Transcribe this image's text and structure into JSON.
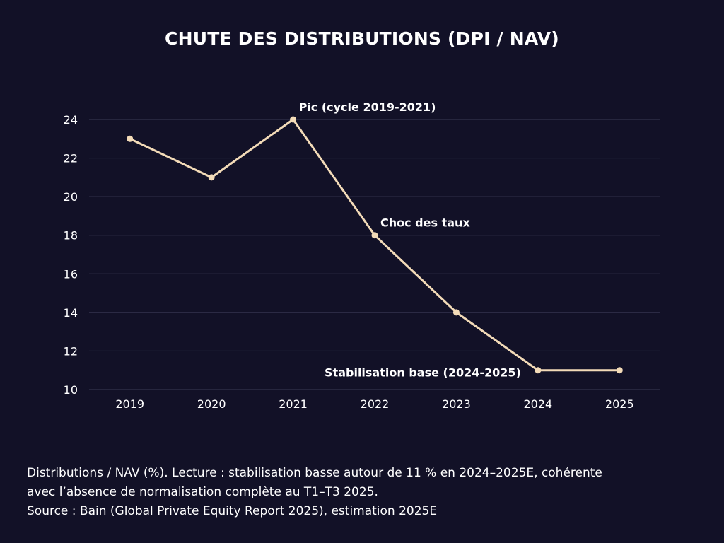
{
  "chart_data": {
    "type": "line",
    "title": "CHUTE DES DISTRIBUTIONS (DPI / NAV)",
    "x": [
      "2019",
      "2020",
      "2021",
      "2022",
      "2023",
      "2024",
      "2025"
    ],
    "series": [
      {
        "values": [
          23,
          21,
          24,
          18,
          14,
          11,
          11
        ]
      }
    ],
    "ylim": [
      10,
      24
    ],
    "yticks": [
      "10",
      "12",
      "14",
      "16",
      "18",
      "20",
      "22",
      "24"
    ],
    "xlabel": "",
    "ylabel": "",
    "grid": true,
    "annotations": [
      {
        "text": "Pic (cycle 2019-2021)",
        "x": "2021",
        "y": 24
      },
      {
        "text": "Choc des taux",
        "x": "2022",
        "y": 18
      },
      {
        "text": "Stabilisation base (2024-2025)",
        "x": "2024",
        "y": 11
      }
    ]
  },
  "caption": {
    "line1": "Distributions / NAV (%). Lecture : stabilisation basse autour de 11 % en 2024–2025E, cohérente",
    "line2": "avec l’absence de normalisation complète au T1–T3 2025.",
    "line3": "Source : Bain (Global Private Equity Report 2025), estimation 2025E"
  },
  "colors": {
    "background": "#121127",
    "line": "#f3dbb8",
    "grid": "#3b3a56",
    "text": "#ffffff"
  }
}
